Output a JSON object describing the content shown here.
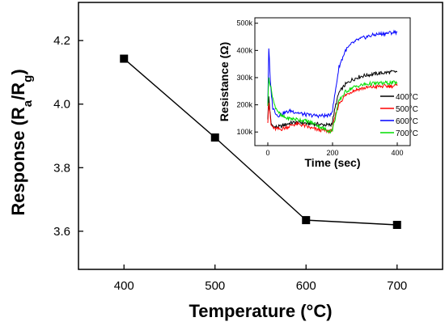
{
  "chart_data": [
    {
      "type": "line",
      "xlabel": "Temperature (°C)",
      "ylabel_parts": [
        "Response (R",
        "a",
        "/R",
        "g",
        ")"
      ],
      "x": [
        400,
        500,
        600,
        700
      ],
      "values": [
        4.143,
        3.895,
        3.635,
        3.62
      ],
      "xlim": [
        350,
        750
      ],
      "ylim": [
        3.48,
        4.32
      ],
      "xticks": [
        400,
        500,
        600,
        700
      ],
      "yticks": [
        3.6,
        3.8,
        4.0,
        4.2
      ],
      "xtick_labels": [
        "400",
        "500",
        "600",
        "700"
      ],
      "ytick_labels": [
        "3.6",
        "3.8",
        "4.0",
        "4.2"
      ],
      "marker": "square",
      "color": "#000000"
    },
    {
      "type": "line",
      "xlabel": "Time (sec)",
      "ylabel": "Resistance (Ω)",
      "xlim": [
        -40,
        440
      ],
      "ylim": [
        50000,
        520000
      ],
      "xticks": [
        0,
        200,
        400
      ],
      "yticks": [
        100000,
        200000,
        300000,
        400000,
        500000
      ],
      "xtick_labels": [
        "0",
        "200",
        "400"
      ],
      "ytick_labels": [
        "100k",
        "200k",
        "300k",
        "400k",
        "500k"
      ],
      "legend_position": "right",
      "series": [
        {
          "name": "400°C",
          "color": "#000000",
          "x": [
            0,
            3,
            10,
            20,
            40,
            60,
            80,
            100,
            120,
            140,
            160,
            180,
            195,
            200,
            210,
            220,
            240,
            260,
            280,
            300,
            320,
            340,
            360,
            380,
            400
          ],
          "values": [
            150000,
            230000,
            130000,
            118000,
            120000,
            130000,
            135000,
            135000,
            132000,
            130000,
            128000,
            126000,
            125000,
            140000,
            200000,
            245000,
            275000,
            292000,
            302000,
            308000,
            312000,
            315000,
            318000,
            320000,
            322000
          ]
        },
        {
          "name": "500°C",
          "color": "#ff0000",
          "x": [
            0,
            3,
            10,
            20,
            40,
            60,
            80,
            100,
            120,
            140,
            160,
            180,
            195,
            200,
            210,
            220,
            240,
            260,
            280,
            300,
            320,
            340,
            360,
            380,
            400
          ],
          "values": [
            140000,
            210000,
            125000,
            112000,
            110000,
            118000,
            128000,
            128000,
            120000,
            112000,
            108000,
            105000,
            103000,
            115000,
            165000,
            205000,
            235000,
            250000,
            258000,
            262000,
            265000,
            267000,
            268000,
            269000,
            270000
          ]
        },
        {
          "name": "600°C",
          "color": "#0000ff",
          "x": [
            0,
            3,
            8,
            15,
            30,
            50,
            70,
            90,
            110,
            130,
            150,
            170,
            190,
            200,
            210,
            220,
            240,
            260,
            280,
            300,
            320,
            340,
            360,
            380,
            400
          ],
          "values": [
            200000,
            410000,
            280000,
            190000,
            160000,
            170000,
            178000,
            172000,
            165000,
            162000,
            160000,
            160000,
            160000,
            180000,
            260000,
            340000,
            400000,
            425000,
            440000,
            448000,
            455000,
            460000,
            462000,
            465000,
            468000
          ]
        },
        {
          "name": "700°C",
          "color": "#00dd00",
          "x": [
            0,
            3,
            10,
            20,
            40,
            60,
            80,
            100,
            120,
            140,
            160,
            180,
            195,
            200,
            210,
            220,
            240,
            260,
            280,
            300,
            320,
            340,
            360,
            380,
            400
          ],
          "values": [
            200000,
            300000,
            260000,
            200000,
            160000,
            150000,
            148000,
            145000,
            140000,
            133000,
            120000,
            108000,
            102000,
            110000,
            160000,
            215000,
            248000,
            262000,
            270000,
            275000,
            278000,
            279000,
            280000,
            281000,
            282000
          ]
        }
      ]
    }
  ]
}
